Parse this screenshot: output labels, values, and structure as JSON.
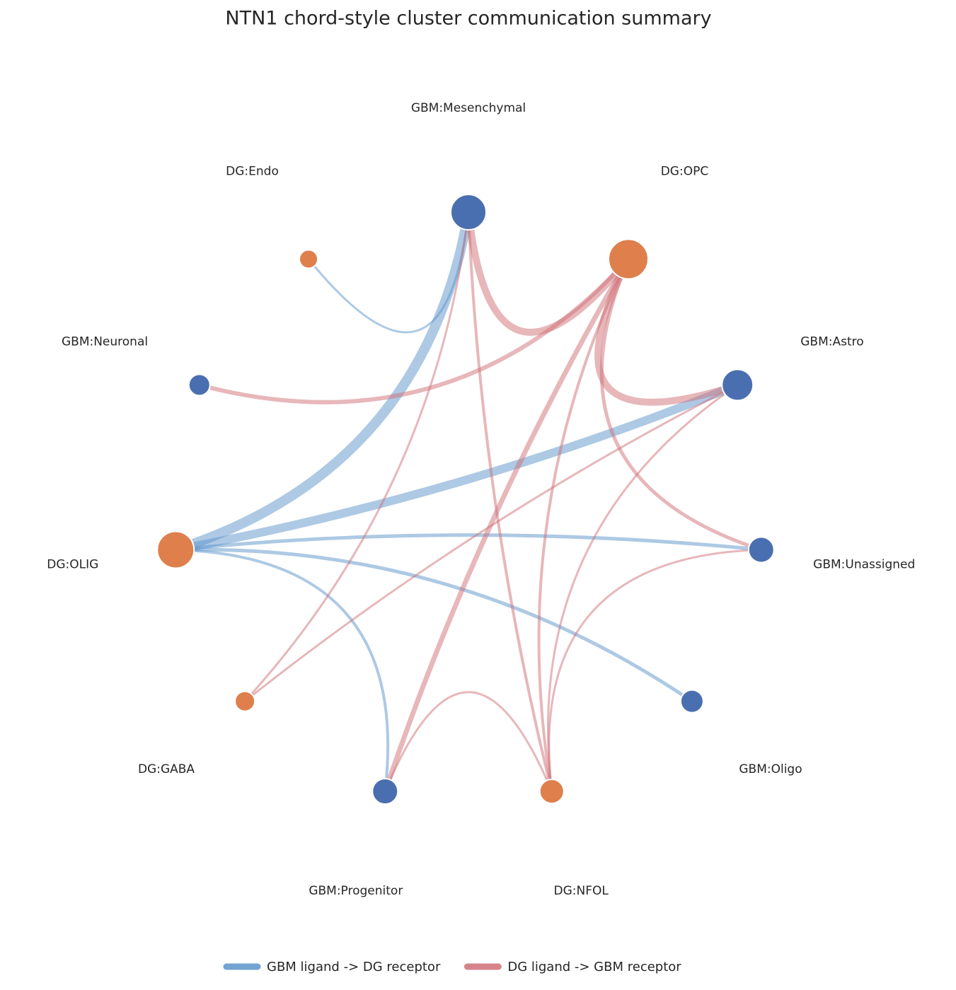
{
  "title": "NTN1 chord-style cluster communication summary",
  "groups": [
    {
      "name": "GBM ligand -> DG receptor",
      "color": "#5b93c9",
      "node_color": "#4a6fb0"
    },
    {
      "name": "DG ligand -> GBM receptor",
      "color": "#cf6f75",
      "node_color": "#de7f4c"
    }
  ],
  "nodes": [
    {
      "label": "GBM:Mesenchymal",
      "group": 0,
      "size": 25
    },
    {
      "label": "DG:OPC",
      "group": 1,
      "size": 28
    },
    {
      "label": "GBM:Astro",
      "group": 0,
      "size": 22
    },
    {
      "label": "GBM:Unassigned",
      "group": 0,
      "size": 18
    },
    {
      "label": "GBM:Oligo",
      "group": 0,
      "size": 16
    },
    {
      "label": "DG:NFOL",
      "group": 1,
      "size": 17
    },
    {
      "label": "GBM:Progenitor",
      "group": 0,
      "size": 18
    },
    {
      "label": "DG:GABA",
      "group": 1,
      "size": 14
    },
    {
      "label": "DG:OLIG",
      "group": 1,
      "size": 26
    },
    {
      "label": "GBM:Neuronal",
      "group": 0,
      "size": 15
    },
    {
      "label": "DG:Endo",
      "group": 1,
      "size": 13
    }
  ],
  "edges": [
    {
      "source": 0,
      "target": 8,
      "group": 0,
      "weight": 14
    },
    {
      "source": 2,
      "target": 8,
      "group": 0,
      "weight": 12
    },
    {
      "source": 0,
      "target": 10,
      "group": 0,
      "weight": 3
    },
    {
      "source": 3,
      "target": 8,
      "group": 0,
      "weight": 5
    },
    {
      "source": 4,
      "target": 8,
      "group": 0,
      "weight": 5
    },
    {
      "source": 6,
      "target": 8,
      "group": 0,
      "weight": 4
    },
    {
      "source": 1,
      "target": 0,
      "group": 1,
      "weight": 10
    },
    {
      "source": 1,
      "target": 9,
      "group": 1,
      "weight": 6
    },
    {
      "source": 1,
      "target": 2,
      "group": 1,
      "weight": 10
    },
    {
      "source": 1,
      "target": 3,
      "group": 1,
      "weight": 5
    },
    {
      "source": 1,
      "target": 6,
      "group": 1,
      "weight": 7
    },
    {
      "source": 1,
      "target": 5,
      "group": 1,
      "weight": 4
    },
    {
      "source": 5,
      "target": 0,
      "group": 1,
      "weight": 4
    },
    {
      "source": 7,
      "target": 0,
      "group": 1,
      "weight": 3
    },
    {
      "source": 7,
      "target": 2,
      "group": 1,
      "weight": 3
    },
    {
      "source": 5,
      "target": 2,
      "group": 1,
      "weight": 3
    },
    {
      "source": 5,
      "target": 6,
      "group": 1,
      "weight": 3
    },
    {
      "source": 5,
      "target": 3,
      "group": 1,
      "weight": 3
    }
  ]
}
